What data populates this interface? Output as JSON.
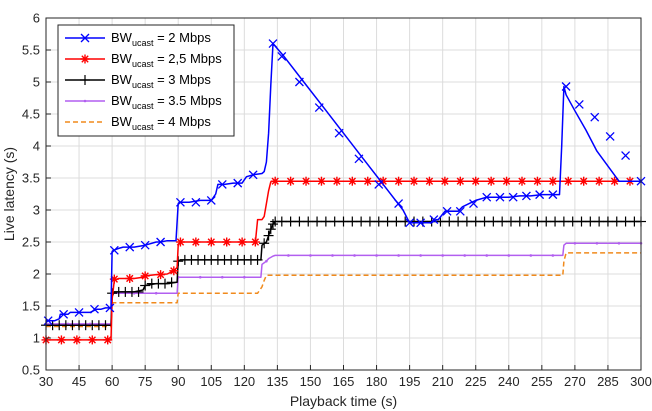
{
  "chart_data": {
    "type": "line",
    "xlabel": "Playback time (s)",
    "ylabel": "Live latency (s)",
    "xlim": [
      30,
      300
    ],
    "ylim": [
      0.5,
      6
    ],
    "xticks": [
      30,
      45,
      60,
      75,
      90,
      105,
      120,
      135,
      150,
      165,
      180,
      195,
      210,
      225,
      240,
      255,
      270,
      285,
      300
    ],
    "yticks": [
      0.5,
      1,
      1.5,
      2,
      2.5,
      3,
      3.5,
      4,
      4.5,
      5,
      5.5,
      6
    ],
    "grid": true,
    "legend_position": "top-left",
    "series": [
      {
        "name": "BWucast = 2 Mbps",
        "label_main": "BW",
        "label_sub": "ucast",
        "label_rest": " = 2 Mbps",
        "color": "#0000ff",
        "marker": "x",
        "x": [
          30,
          34,
          36,
          36.5,
          40,
          41,
          45,
          50,
          53,
          55,
          57,
          59.5,
          60,
          60.5,
          63,
          65,
          70,
          75,
          80,
          82,
          85,
          89,
          90,
          90.5,
          95,
          100,
          105,
          107,
          108,
          111,
          115,
          119,
          121,
          124,
          128,
          129,
          130,
          131,
          132,
          133,
          138,
          147,
          156,
          165,
          174,
          183,
          192,
          195,
          200,
          205,
          207,
          208,
          211,
          217,
          219,
          222,
          225,
          230,
          235,
          240,
          245,
          250,
          255,
          260,
          263,
          264,
          265,
          266,
          270,
          275,
          280,
          290,
          300
        ],
        "y": [
          1.27,
          1.27,
          1.3,
          1.37,
          1.37,
          1.4,
          1.4,
          1.4,
          1.45,
          1.45,
          1.47,
          1.47,
          2.35,
          2.37,
          2.4,
          2.42,
          2.42,
          2.45,
          2.5,
          2.5,
          2.52,
          2.52,
          3.1,
          3.12,
          3.12,
          3.15,
          3.15,
          3.25,
          3.4,
          3.4,
          3.42,
          3.42,
          3.52,
          3.55,
          3.57,
          3.6,
          3.75,
          4.2,
          4.95,
          5.6,
          5.4,
          5.0,
          4.6,
          4.2,
          3.8,
          3.4,
          3.0,
          2.8,
          2.8,
          2.8,
          2.85,
          2.85,
          2.98,
          2.98,
          3.05,
          3.1,
          3.15,
          3.2,
          3.2,
          3.2,
          3.22,
          3.22,
          3.24,
          3.24,
          3.24,
          4.0,
          4.93,
          4.8,
          4.55,
          4.25,
          3.92,
          3.45,
          3.45
        ],
        "markers_x": [
          31,
          35,
          40,
          45,
          50,
          55,
          60,
          65,
          70,
          75,
          80,
          85,
          90,
          95,
          100,
          105,
          110,
          115,
          120,
          125,
          130,
          135,
          140,
          145,
          150,
          155,
          160,
          165,
          170,
          175,
          180,
          185,
          190,
          195,
          200,
          205,
          210,
          215,
          220,
          225,
          230,
          235,
          240,
          245,
          250,
          255,
          260,
          265,
          270,
          275,
          280,
          285,
          290,
          295,
          300
        ],
        "markers": [
          [
            31,
            1.27
          ],
          [
            38,
            1.37
          ],
          [
            45,
            1.4
          ],
          [
            52,
            1.45
          ],
          [
            59,
            1.47
          ],
          [
            61,
            2.37
          ],
          [
            68,
            2.42
          ],
          [
            75,
            2.45
          ],
          [
            82,
            2.5
          ],
          [
            91,
            3.12
          ],
          [
            98,
            3.12
          ],
          [
            105,
            3.15
          ],
          [
            110,
            3.4
          ],
          [
            117,
            3.42
          ],
          [
            124,
            3.55
          ],
          [
            133,
            5.6
          ],
          [
            137,
            5.4
          ],
          [
            145,
            5.0
          ],
          [
            154,
            4.6
          ],
          [
            163,
            4.2
          ],
          [
            172,
            3.8
          ],
          [
            181,
            3.4
          ],
          [
            190,
            3.1
          ],
          [
            195,
            2.8
          ],
          [
            200,
            2.8
          ],
          [
            206,
            2.85
          ],
          [
            212,
            2.98
          ],
          [
            218,
            2.98
          ],
          [
            224,
            3.1
          ],
          [
            230,
            3.2
          ],
          [
            236,
            3.2
          ],
          [
            242,
            3.2
          ],
          [
            248,
            3.22
          ],
          [
            254,
            3.24
          ],
          [
            260,
            3.24
          ],
          [
            266,
            4.93
          ],
          [
            272,
            4.65
          ],
          [
            279,
            4.45
          ],
          [
            286,
            4.15
          ],
          [
            293,
            3.85
          ],
          [
            300,
            3.45
          ]
        ]
      },
      {
        "name": "BWucast = 2,5 Mbps",
        "label_main": "BW",
        "label_sub": "ucast",
        "label_rest": " = 2,5 Mbps",
        "color": "#ff0000",
        "marker": "*",
        "x": [
          30,
          59.5,
          60,
          61,
          63,
          70,
          74,
          75,
          80,
          85,
          88,
          89.5,
          90,
          91,
          95,
          100,
          110,
          120,
          125,
          126,
          127,
          128,
          129,
          130,
          131,
          132,
          133,
          140,
          200,
          260,
          300
        ],
        "y": [
          0.97,
          0.97,
          1.6,
          1.9,
          1.93,
          1.93,
          1.95,
          1.97,
          1.99,
          2.0,
          2.05,
          2.1,
          2.45,
          2.5,
          2.5,
          2.5,
          2.5,
          2.5,
          2.5,
          2.85,
          2.85,
          2.85,
          2.9,
          3.1,
          3.3,
          3.44,
          3.45,
          3.45,
          3.45,
          3.45,
          3.45
        ],
        "markers": [
          [
            30,
            0.97
          ],
          [
            37,
            0.97
          ],
          [
            44,
            0.97
          ],
          [
            51,
            0.97
          ],
          [
            58,
            0.97
          ],
          [
            61,
            1.92
          ],
          [
            68,
            1.93
          ],
          [
            75,
            1.97
          ],
          [
            82,
            1.99
          ],
          [
            88,
            2.05
          ],
          [
            91,
            2.5
          ],
          [
            98,
            2.5
          ],
          [
            105,
            2.5
          ],
          [
            112,
            2.5
          ],
          [
            119,
            2.5
          ],
          [
            125,
            2.5
          ],
          [
            134,
            3.45
          ],
          [
            141,
            3.45
          ],
          [
            148,
            3.45
          ],
          [
            155,
            3.45
          ],
          [
            162,
            3.45
          ],
          [
            169,
            3.45
          ],
          [
            176,
            3.45
          ],
          [
            183,
            3.45
          ],
          [
            190,
            3.45
          ],
          [
            197,
            3.45
          ],
          [
            204,
            3.45
          ],
          [
            211,
            3.45
          ],
          [
            218,
            3.45
          ],
          [
            225,
            3.45
          ],
          [
            232,
            3.45
          ],
          [
            239,
            3.45
          ],
          [
            246,
            3.45
          ],
          [
            253,
            3.45
          ],
          [
            260,
            3.45
          ],
          [
            267,
            3.45
          ],
          [
            274,
            3.45
          ],
          [
            281,
            3.45
          ],
          [
            288,
            3.45
          ],
          [
            295,
            3.45
          ]
        ]
      },
      {
        "name": "BWucast = 3 Mbps",
        "label_main": "BW",
        "label_sub": "ucast",
        "label_rest": " = 3 Mbps",
        "color": "#000000",
        "marker": "+",
        "x": [
          30,
          59.5,
          60,
          61,
          70,
          74,
          75,
          80,
          85,
          89.5,
          90,
          91,
          100,
          110,
          120,
          125,
          127.5,
          128,
          130,
          131,
          132,
          133,
          134,
          140,
          200,
          260,
          300
        ],
        "y": [
          1.2,
          1.2,
          1.65,
          1.72,
          1.72,
          1.75,
          1.82,
          1.85,
          1.85,
          1.87,
          2.2,
          2.22,
          2.22,
          2.22,
          2.22,
          2.22,
          2.22,
          2.45,
          2.5,
          2.6,
          2.7,
          2.78,
          2.82,
          2.82,
          2.82,
          2.82,
          2.82
        ],
        "markers": [
          [
            30,
            1.2
          ],
          [
            33,
            1.2
          ],
          [
            36,
            1.2
          ],
          [
            39,
            1.2
          ],
          [
            42,
            1.2
          ],
          [
            45,
            1.2
          ],
          [
            48,
            1.2
          ],
          [
            51,
            1.2
          ],
          [
            54,
            1.2
          ],
          [
            57,
            1.2
          ],
          [
            60,
            1.7
          ],
          [
            63,
            1.72
          ],
          [
            66,
            1.72
          ],
          [
            69,
            1.72
          ],
          [
            72,
            1.72
          ],
          [
            75,
            1.82
          ],
          [
            78,
            1.85
          ],
          [
            81,
            1.85
          ],
          [
            84,
            1.85
          ],
          [
            87,
            1.87
          ],
          [
            90,
            2.2
          ],
          [
            93,
            2.22
          ],
          [
            96,
            2.22
          ],
          [
            99,
            2.22
          ],
          [
            102,
            2.22
          ],
          [
            105,
            2.22
          ],
          [
            108,
            2.22
          ],
          [
            111,
            2.22
          ],
          [
            114,
            2.22
          ],
          [
            117,
            2.22
          ],
          [
            120,
            2.22
          ],
          [
            123,
            2.22
          ],
          [
            126,
            2.22
          ],
          [
            129,
            2.48
          ],
          [
            131,
            2.6
          ],
          [
            132,
            2.7
          ],
          [
            133,
            2.78
          ],
          [
            134,
            2.82
          ],
          [
            137,
            2.82
          ],
          [
            141,
            2.82
          ],
          [
            145,
            2.82
          ],
          [
            149,
            2.82
          ],
          [
            153,
            2.82
          ],
          [
            157,
            2.82
          ],
          [
            161,
            2.82
          ],
          [
            165,
            2.82
          ],
          [
            169,
            2.82
          ],
          [
            173,
            2.82
          ],
          [
            177,
            2.82
          ],
          [
            181,
            2.82
          ],
          [
            185,
            2.82
          ],
          [
            189,
            2.82
          ],
          [
            193,
            2.82
          ],
          [
            197,
            2.82
          ],
          [
            201,
            2.82
          ],
          [
            205,
            2.82
          ],
          [
            209,
            2.82
          ],
          [
            213,
            2.82
          ],
          [
            217,
            2.82
          ],
          [
            221,
            2.82
          ],
          [
            225,
            2.82
          ],
          [
            229,
            2.82
          ],
          [
            233,
            2.82
          ],
          [
            237,
            2.82
          ],
          [
            241,
            2.82
          ],
          [
            245,
            2.82
          ],
          [
            249,
            2.82
          ],
          [
            253,
            2.82
          ],
          [
            257,
            2.82
          ],
          [
            261,
            2.82
          ],
          [
            265,
            2.82
          ],
          [
            269,
            2.82
          ],
          [
            273,
            2.82
          ],
          [
            277,
            2.82
          ],
          [
            281,
            2.82
          ],
          [
            285,
            2.82
          ],
          [
            289,
            2.82
          ],
          [
            293,
            2.82
          ],
          [
            297,
            2.82
          ],
          [
            300,
            2.82
          ]
        ]
      },
      {
        "name": "BWucast = 3.5 Mbps",
        "label_main": "BW",
        "label_sub": "ucast",
        "label_rest": " = 3.5 Mbps",
        "color": "#b25ff0",
        "marker": "dot",
        "x": [
          30,
          59.5,
          60,
          61,
          80,
          89.5,
          90,
          91,
          125,
          127.5,
          128,
          130,
          131,
          132,
          133,
          134,
          140,
          200,
          264.5,
          265,
          266,
          300
        ],
        "y": [
          1.22,
          1.22,
          1.7,
          1.7,
          1.7,
          1.7,
          1.95,
          1.95,
          1.95,
          1.95,
          2.15,
          2.2,
          2.24,
          2.26,
          2.28,
          2.29,
          2.29,
          2.29,
          2.29,
          2.45,
          2.48,
          2.48
        ],
        "markers": [
          [
            30,
            1.22
          ],
          [
            40,
            1.22
          ],
          [
            50,
            1.22
          ],
          [
            60,
            1.7
          ],
          [
            70,
            1.7
          ],
          [
            80,
            1.7
          ],
          [
            90,
            1.95
          ],
          [
            100,
            1.95
          ],
          [
            110,
            1.95
          ],
          [
            120,
            1.95
          ],
          [
            130,
            2.2
          ],
          [
            140,
            2.29
          ],
          [
            150,
            2.29
          ],
          [
            160,
            2.29
          ],
          [
            170,
            2.29
          ],
          [
            180,
            2.29
          ],
          [
            190,
            2.29
          ],
          [
            200,
            2.29
          ],
          [
            210,
            2.29
          ],
          [
            220,
            2.29
          ],
          [
            230,
            2.29
          ],
          [
            240,
            2.29
          ],
          [
            250,
            2.29
          ],
          [
            260,
            2.29
          ],
          [
            270,
            2.48
          ],
          [
            280,
            2.48
          ],
          [
            290,
            2.48
          ],
          [
            300,
            2.48
          ]
        ]
      },
      {
        "name": "BWucast = 4 Mbps",
        "label_main": "BW",
        "label_sub": "ucast",
        "label_rest": " = 4 Mbps",
        "color": "#f08a1c",
        "marker": "none",
        "dash": "5,3",
        "x": [
          30,
          59.5,
          60,
          89.5,
          90,
          126,
          127,
          128,
          129,
          130,
          200,
          264.5,
          265,
          266,
          300
        ],
        "y": [
          1.18,
          1.18,
          1.55,
          1.55,
          1.7,
          1.7,
          1.75,
          1.8,
          1.9,
          1.98,
          1.98,
          1.98,
          2.2,
          2.33,
          2.33
        ]
      }
    ]
  }
}
